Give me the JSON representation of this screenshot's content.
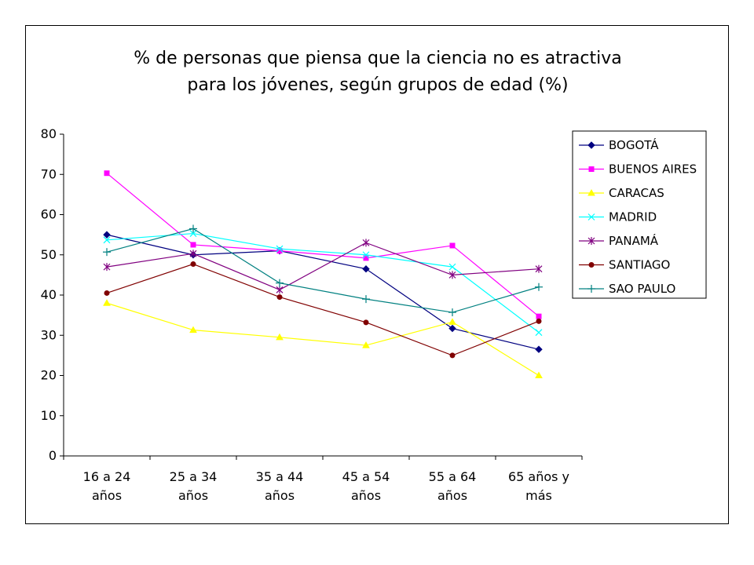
{
  "chart_data": {
    "type": "line",
    "title_lines": [
      "% de personas que piensa que la ciencia no es atractiva",
      "para los jóvenes, según grupos de edad (%)"
    ],
    "categories": [
      [
        "16 a 24",
        "años"
      ],
      [
        "25 a 34",
        "años"
      ],
      [
        "35 a 44",
        "años"
      ],
      [
        "45 a 54",
        "años"
      ],
      [
        "55 a 64",
        "años"
      ],
      [
        "65 años y",
        "más"
      ]
    ],
    "ylim": [
      0,
      80
    ],
    "yticks": [
      0,
      10,
      20,
      30,
      40,
      50,
      60,
      70,
      80
    ],
    "grid": false,
    "legend_position": "right",
    "series": [
      {
        "name": "BOGOTÁ",
        "color": "#000080",
        "marker": "diamond",
        "values": [
          55,
          50,
          51,
          46.5,
          31.7,
          26.5
        ]
      },
      {
        "name": "BUENOS AIRES",
        "color": "#ff00ff",
        "marker": "square",
        "values": [
          70.3,
          52.5,
          51,
          49.2,
          52.3,
          34.7
        ]
      },
      {
        "name": "CARACAS",
        "color": "#ffff00",
        "marker": "triangle",
        "values": [
          38,
          31.3,
          29.5,
          27.5,
          33.3,
          20
        ]
      },
      {
        "name": "MADRID",
        "color": "#00ffff",
        "marker": "x",
        "values": [
          53.7,
          55.3,
          51.5,
          50,
          47,
          30.7
        ]
      },
      {
        "name": "PANAMÁ",
        "color": "#800080",
        "marker": "star",
        "values": [
          47,
          50.3,
          41.3,
          53,
          45,
          46.5
        ]
      },
      {
        "name": "SANTIAGO",
        "color": "#800000",
        "marker": "circle",
        "values": [
          40.5,
          47.7,
          39.5,
          33.2,
          25,
          33.5
        ]
      },
      {
        "name": "SAO PAULO",
        "color": "#008080",
        "marker": "plus",
        "values": [
          50.7,
          56.5,
          43,
          39,
          35.7,
          42
        ]
      }
    ]
  }
}
